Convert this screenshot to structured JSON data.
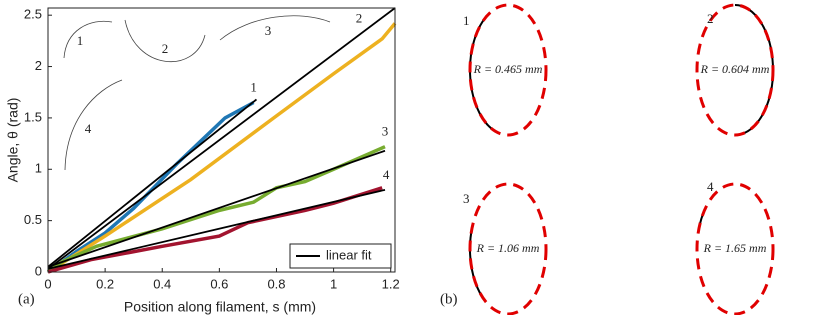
{
  "chart_data": {
    "type": "line",
    "xlabel": "Position along filament, s (mm)",
    "ylabel": "Angle, θ (rad)",
    "panel_label": "(a)",
    "xlim": [
      0,
      1.215
    ],
    "ylim": [
      0,
      2.57
    ],
    "xticks": [
      0,
      0.2,
      0.4,
      0.6,
      0.8,
      1,
      1.2
    ],
    "yticks": [
      0,
      0.5,
      1,
      1.5,
      2,
      2.5
    ],
    "series": [
      {
        "name": "1",
        "color": "#1f77b4",
        "x": [
          0,
          0.1,
          0.2,
          0.3,
          0.45,
          0.62,
          0.72
        ],
        "values": [
          0,
          0.2,
          0.38,
          0.62,
          1.05,
          1.5,
          1.65
        ]
      },
      {
        "name": "2",
        "color": "#edb120",
        "x": [
          0,
          0.2,
          0.5,
          0.8,
          1.0,
          1.17,
          1.215
        ],
        "values": [
          0,
          0.35,
          0.9,
          1.52,
          1.93,
          2.27,
          2.42
        ]
      },
      {
        "name": "3",
        "color": "#77ac30",
        "x": [
          0,
          0.05,
          0.17,
          0.4,
          0.6,
          0.72,
          0.8,
          0.9,
          1.0,
          1.18
        ],
        "values": [
          0,
          0.1,
          0.25,
          0.42,
          0.6,
          0.68,
          0.82,
          0.88,
          1.0,
          1.22
        ]
      },
      {
        "name": "4",
        "color": "#a2142f",
        "x": [
          0,
          0.15,
          0.4,
          0.6,
          0.7,
          0.9,
          1.0,
          1.17
        ],
        "values": [
          0,
          0.12,
          0.25,
          0.35,
          0.48,
          0.6,
          0.67,
          0.82
        ]
      }
    ],
    "fit": {
      "name": "linear fit",
      "color": "#000000",
      "lines": [
        [
          0,
          0.05,
          0.73,
          1.68
        ],
        [
          0,
          0.03,
          1.215,
          2.57
        ],
        [
          0,
          0.05,
          1.18,
          1.18
        ],
        [
          0,
          0.03,
          1.18,
          0.8
        ]
      ]
    },
    "inset_labels": [
      "1",
      "2",
      "3",
      "4"
    ]
  },
  "panel_b": {
    "panel_label": "(b)",
    "circles": [
      {
        "label": "1",
        "radius": "R = 0.465 mm"
      },
      {
        "label": "2",
        "radius": "R = 0.604 mm"
      },
      {
        "label": "3",
        "radius": "R = 1.06 mm"
      },
      {
        "label": "4",
        "radius": "R = 1.65 mm"
      }
    ]
  }
}
